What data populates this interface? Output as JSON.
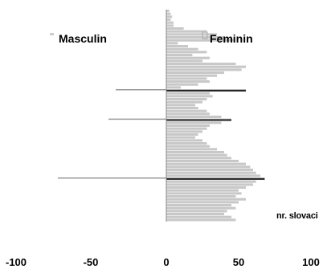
{
  "chart_data": {
    "type": "bar",
    "orientation": "horizontal",
    "legend": {
      "left_label": "Masculin",
      "right_label": "Feminin"
    },
    "xlabel": "nr. slovaci",
    "xlim": [
      -100,
      100
    ],
    "x_ticks": [
      "-100",
      "-50",
      "0",
      "50",
      "100"
    ],
    "grid": false,
    "series": [
      {
        "name": "Masculin",
        "values": [
          0,
          0,
          0,
          0,
          0,
          0,
          0,
          0,
          0,
          0,
          0,
          0,
          0,
          0,
          0,
          0,
          0,
          0,
          0,
          0,
          0,
          0,
          0,
          0,
          0,
          0,
          0,
          -35,
          0,
          0,
          0,
          0,
          0,
          0,
          0,
          0,
          0,
          -40,
          0,
          0,
          0,
          0,
          0,
          0,
          0,
          0,
          0,
          0,
          0,
          0,
          0,
          0,
          0,
          0,
          0,
          0,
          0,
          -75,
          0,
          0,
          0,
          0,
          0,
          0,
          0,
          0,
          0,
          0,
          0,
          0,
          0,
          0
        ]
      },
      {
        "name": "Feminin",
        "values": [
          2,
          3,
          4,
          3,
          5,
          5,
          12,
          28,
          35,
          40,
          47,
          8,
          15,
          22,
          28,
          18,
          30,
          25,
          48,
          55,
          52,
          40,
          35,
          28,
          30,
          22,
          10,
          55,
          30,
          32,
          28,
          25,
          20,
          22,
          28,
          30,
          38,
          45,
          38,
          30,
          28,
          25,
          22,
          20,
          25,
          28,
          30,
          35,
          40,
          42,
          45,
          50,
          55,
          58,
          60,
          62,
          65,
          68,
          62,
          60,
          55,
          50,
          52,
          48,
          55,
          50,
          45,
          48,
          42,
          40,
          45,
          48
        ]
      }
    ]
  },
  "colors": {
    "bar": "#c8c8c8",
    "axis": "#888888",
    "text": "#000000"
  }
}
